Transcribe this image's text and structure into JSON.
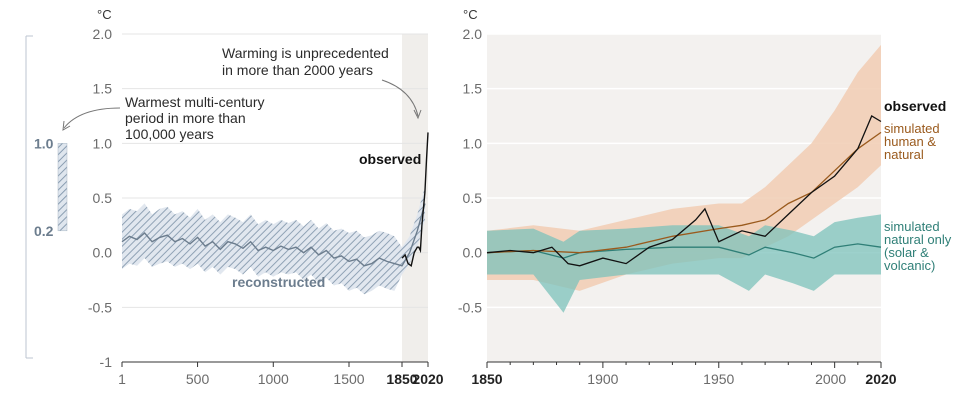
{
  "colors": {
    "reconstructed": "#6c7d8e",
    "reconstructed_band": "#9fb0c2",
    "observed": "#111111",
    "human_natural": "#9a5a1d",
    "human_natural_band": "#f1cdb3",
    "natural": "#2f7f77",
    "natural_band": "#7cc2bb",
    "highlight_bar": "#aab8c6",
    "recent_shade": "#f0eeeb"
  },
  "chart_data": [
    {
      "type": "line",
      "unit": "°C",
      "ylim": [
        -1,
        2
      ],
      "yticks": [
        "2.0",
        "1.5",
        "1.0",
        "0.5",
        "0.0",
        "-0.5",
        "-1"
      ],
      "xlim": [
        1,
        2020
      ],
      "xticks": [
        "1",
        "500",
        "1000",
        "1500",
        "1850",
        "2020"
      ],
      "shaded_period": [
        1850,
        2020
      ],
      "series": [
        {
          "name": "reconstructed",
          "x": [
            1,
            50,
            100,
            150,
            200,
            250,
            300,
            350,
            400,
            450,
            500,
            550,
            600,
            650,
            700,
            750,
            800,
            850,
            900,
            950,
            1000,
            1050,
            1100,
            1150,
            1200,
            1250,
            1300,
            1350,
            1400,
            1450,
            1500,
            1550,
            1600,
            1650,
            1700,
            1750,
            1800,
            1850,
            1900,
            1950,
            2000
          ],
          "values": [
            0.1,
            0.15,
            0.12,
            0.18,
            0.1,
            0.14,
            0.16,
            0.1,
            0.13,
            0.08,
            0.14,
            0.06,
            0.1,
            0.03,
            0.1,
            0.08,
            0.04,
            0.1,
            0.02,
            0.05,
            0.02,
            0.06,
            0.03,
            0.05,
            0.0,
            0.05,
            -0.02,
            0.02,
            -0.05,
            -0.03,
            -0.08,
            -0.06,
            -0.12,
            -0.1,
            -0.05,
            -0.08,
            -0.1,
            -0.12,
            0.0,
            0.2,
            0.45
          ],
          "band_low": [
            -0.15,
            -0.1,
            -0.12,
            -0.05,
            -0.13,
            -0.1,
            -0.08,
            -0.13,
            -0.1,
            -0.15,
            -0.1,
            -0.18,
            -0.13,
            -0.2,
            -0.13,
            -0.15,
            -0.2,
            -0.13,
            -0.22,
            -0.18,
            -0.22,
            -0.18,
            -0.2,
            -0.18,
            -0.25,
            -0.2,
            -0.28,
            -0.23,
            -0.3,
            -0.28,
            -0.35,
            -0.32,
            -0.38,
            -0.35,
            -0.3,
            -0.33,
            -0.35,
            -0.2,
            -0.1,
            0.05,
            0.3
          ],
          "band_high": [
            0.35,
            0.4,
            0.38,
            0.45,
            0.35,
            0.4,
            0.42,
            0.35,
            0.38,
            0.32,
            0.4,
            0.3,
            0.35,
            0.28,
            0.35,
            0.32,
            0.28,
            0.35,
            0.26,
            0.3,
            0.26,
            0.3,
            0.27,
            0.3,
            0.24,
            0.3,
            0.22,
            0.27,
            0.2,
            0.22,
            0.18,
            0.2,
            0.14,
            0.16,
            0.2,
            0.18,
            0.15,
            0.05,
            0.15,
            0.35,
            0.6
          ]
        },
        {
          "name": "observed",
          "x": [
            1850,
            1870,
            1890,
            1910,
            1930,
            1950,
            1960,
            1970,
            1980,
            1990,
            2000,
            2010,
            2020
          ],
          "values": [
            -0.05,
            -0.02,
            -0.1,
            -0.12,
            0.0,
            0.05,
            0.05,
            0.02,
            0.25,
            0.4,
            0.55,
            0.85,
            1.1
          ]
        }
      ],
      "highlight": {
        "low_label": "0.2",
        "high_label": "1.0",
        "low": 0.2,
        "high": 1.0
      },
      "annotations": {
        "warming": [
          "Warming is unprecedented",
          "in more than 2000 years"
        ],
        "warmest": [
          "Warmest multi-century",
          "period in more than",
          "100,000 years"
        ],
        "observed_label": "observed",
        "reconstructed_label": "reconstructed"
      }
    },
    {
      "type": "line",
      "unit": "°C",
      "ylim": [
        -1,
        2
      ],
      "yticks": [
        "2.0",
        "1.5",
        "1.0",
        "0.5",
        "0.0",
        "-0.5"
      ],
      "xlim": [
        1850,
        2020
      ],
      "xticks": [
        "1850",
        "1900",
        "1950",
        "2000",
        "2020"
      ],
      "series": [
        {
          "name": "observed",
          "x": [
            1850,
            1860,
            1870,
            1878,
            1885,
            1890,
            1900,
            1910,
            1920,
            1930,
            1940,
            1944,
            1950,
            1960,
            1970,
            1980,
            1990,
            2000,
            2010,
            2016,
            2020
          ],
          "values": [
            0.0,
            0.02,
            0.0,
            0.05,
            -0.1,
            -0.12,
            -0.05,
            -0.1,
            0.05,
            0.12,
            0.3,
            0.4,
            0.1,
            0.2,
            0.15,
            0.35,
            0.55,
            0.7,
            0.95,
            1.25,
            1.2
          ]
        },
        {
          "name": "simulated human & natural",
          "x": [
            1850,
            1870,
            1890,
            1910,
            1930,
            1950,
            1960,
            1970,
            1980,
            1990,
            2000,
            2010,
            2020
          ],
          "values": [
            0.0,
            0.02,
            0.0,
            0.05,
            0.15,
            0.22,
            0.25,
            0.3,
            0.45,
            0.55,
            0.75,
            0.95,
            1.1
          ],
          "band_low": [
            -0.25,
            -0.25,
            -0.35,
            -0.2,
            -0.1,
            -0.05,
            -0.05,
            0.05,
            0.15,
            0.3,
            0.45,
            0.6,
            0.8
          ],
          "band_high": [
            0.2,
            0.25,
            0.2,
            0.3,
            0.4,
            0.45,
            0.45,
            0.6,
            0.8,
            1.0,
            1.3,
            1.65,
            1.9
          ]
        },
        {
          "name": "simulated natural only (solar & volcanic)",
          "x": [
            1850,
            1870,
            1883,
            1890,
            1910,
            1930,
            1950,
            1963,
            1970,
            1982,
            1991,
            2000,
            2010,
            2020
          ],
          "values": [
            0.0,
            0.02,
            -0.05,
            0.0,
            0.03,
            0.05,
            0.05,
            -0.02,
            0.05,
            0.0,
            -0.05,
            0.05,
            0.08,
            0.05
          ],
          "band_low": [
            -0.2,
            -0.2,
            -0.55,
            -0.25,
            -0.2,
            -0.2,
            -0.2,
            -0.35,
            -0.2,
            -0.28,
            -0.35,
            -0.2,
            -0.2,
            -0.2
          ],
          "band_high": [
            0.2,
            0.22,
            0.1,
            0.2,
            0.22,
            0.25,
            0.25,
            0.15,
            0.25,
            0.2,
            0.15,
            0.28,
            0.32,
            0.35
          ]
        }
      ],
      "labels": {
        "observed": "observed",
        "human_natural": [
          "simulated",
          "human &",
          "natural"
        ],
        "natural": [
          "simulated",
          "natural only",
          "(solar &",
          "volcanic)"
        ]
      }
    }
  ]
}
